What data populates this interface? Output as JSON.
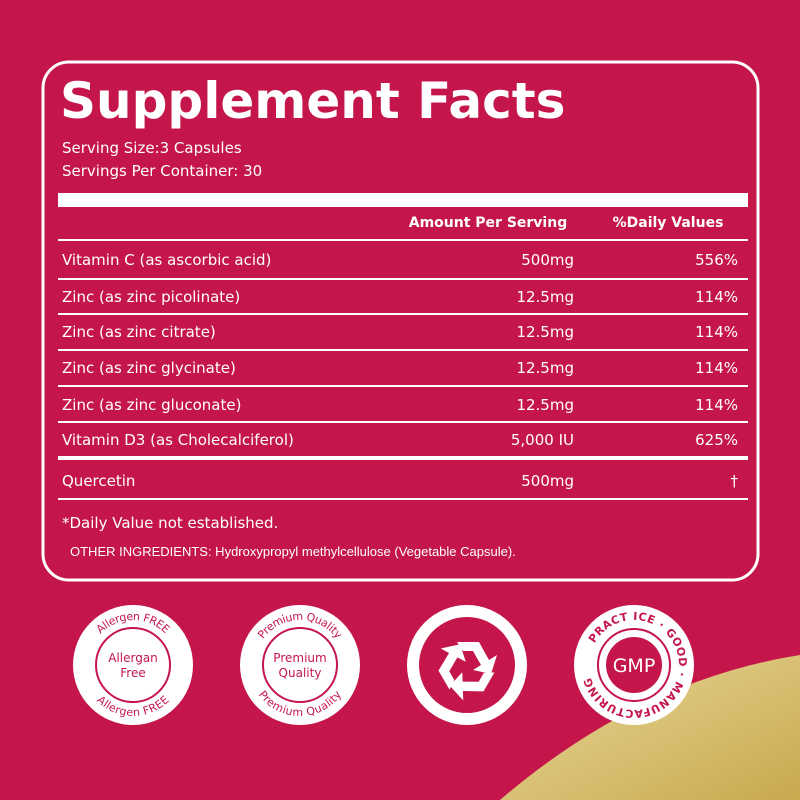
{
  "header": {
    "title": "Supplement Facts",
    "serving_size": "Serving Size:3 Capsules",
    "servings_per_container": "Servings Per Container: 30"
  },
  "table": {
    "columns": [
      "Amount Per Serving",
      "%Daily Values"
    ],
    "rows": [
      [
        "Vitamin C (as ascorbic acid)",
        "500mg",
        "556%"
      ],
      [
        "Zinc (as zinc picolinate)",
        "12.5mg",
        "114%"
      ],
      [
        "Zinc (as zinc citrate)",
        "12.5mg",
        "114%"
      ],
      [
        "Zinc (as zinc glycinate)",
        "12.5mg",
        "114%"
      ],
      [
        "Zinc (as zinc gluconate)",
        "12.5mg",
        "114%"
      ],
      [
        "Vitamin D3 (as Cholecalciferol)",
        "5,000 IU",
        "625%"
      ],
      [
        "Quercetin",
        "500mg",
        "†"
      ]
    ]
  },
  "footnote": "*Daily Value not established.",
  "other_ingredients": "OTHER INGREDIENTS: Hydroxypropyl methylcellulose (Vegetable Capsule).",
  "badges": {
    "allergen": {
      "top": "Allergen FREE",
      "center": [
        "Allergan",
        "Free"
      ],
      "bottom": "Allergen FREE"
    },
    "premium": {
      "top": "Premium Quality",
      "center": [
        "Premium",
        "Quality"
      ],
      "bottom": "Premium Quality"
    },
    "gmp": {
      "ring": "PRACT ICE · GOOD · MANUFACTURING",
      "center": "GMP"
    }
  }
}
